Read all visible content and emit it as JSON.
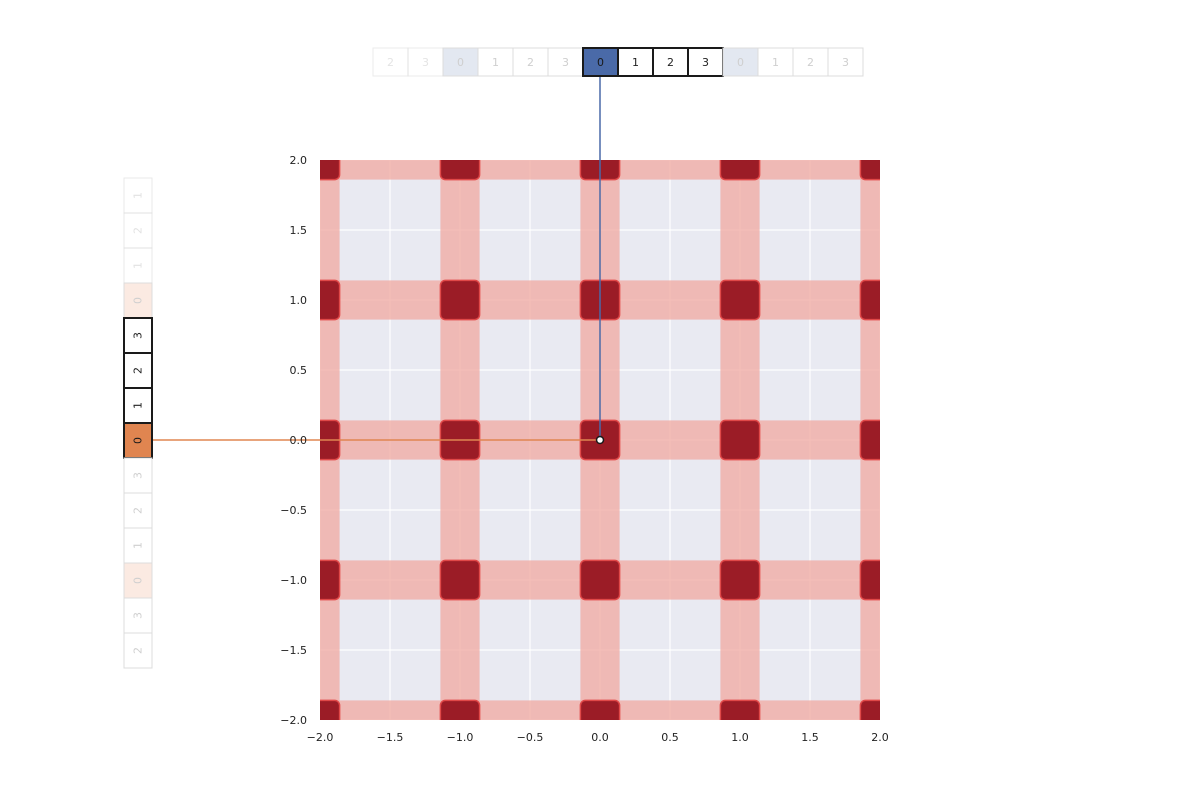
{
  "page": {
    "title": "",
    "subtitle": ""
  },
  "chart_data": {
    "type": "heatmap",
    "title": "",
    "xlabel": "",
    "ylabel": "",
    "xlim": [
      -2.0,
      2.0
    ],
    "ylim": [
      -2.0,
      2.0
    ],
    "x_ticks": [
      "−2.0",
      "−1.5",
      "−1.0",
      "−0.5",
      "0.0",
      "0.5",
      "1.0",
      "1.5",
      "2.0"
    ],
    "y_ticks": [
      "2.0",
      "1.5",
      "1.0",
      "0.5",
      "0.0",
      "−0.5",
      "−1.0",
      "−1.5",
      "−2.0"
    ],
    "grid": true,
    "grid_lines_at": [
      -2.0,
      -1.5,
      -1.0,
      -0.5,
      0.0,
      0.5,
      1.0,
      1.5,
      2.0
    ],
    "band_centers": [
      -2.0,
      -1.0,
      0.0,
      1.0,
      2.0
    ],
    "band_halfwidth": 0.14,
    "highlight_point": {
      "x": 0.0,
      "y": 0.0
    },
    "x_strip": {
      "labels": [
        "2",
        "3",
        "0",
        "1",
        "2",
        "3",
        "0",
        "1",
        "2",
        "3",
        "0",
        "1",
        "2",
        "3"
      ],
      "active_index": 6,
      "window_indices": [
        6,
        7,
        8,
        9
      ]
    },
    "y_strip": {
      "labels": [
        "1",
        "2",
        "1",
        "0",
        "3",
        "2",
        "1",
        "0",
        "3",
        "2",
        "1",
        "0",
        "3",
        "2"
      ],
      "active_index": 7,
      "window_indices": [
        4,
        5,
        6,
        7
      ]
    }
  },
  "colors": {
    "background": "#ffffff",
    "plot_background": "#e9eaf2",
    "grid": "#ffffff",
    "band": "#f0a8a0",
    "band_opacity": 0.75,
    "intersection": "#9b1c26",
    "intersection_edge": "#e04848",
    "x_accent": "#4a6aa8",
    "x_zero_pale": "#e3e8f1",
    "y_accent": "#e08550",
    "y_zero_pale": "#fbeae2",
    "cell_border_dark": "#1a1a1a",
    "cell_border_faint": "#dcdcdc",
    "tick_text": "#222222"
  }
}
